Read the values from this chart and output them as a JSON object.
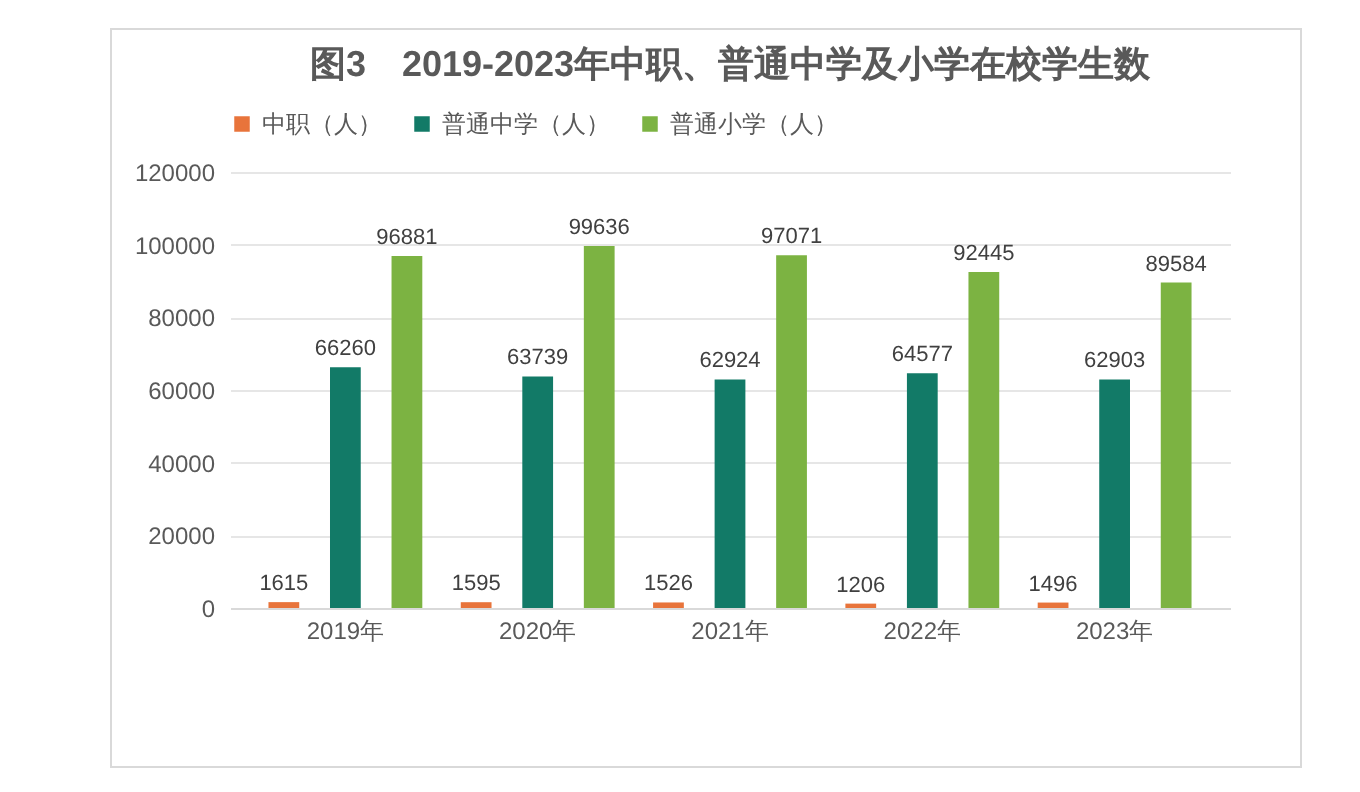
{
  "chart_data": {
    "type": "bar",
    "title": "图3　2019-2023年中职、普通中学及小学在校学生数",
    "categories": [
      "2019年",
      "2020年",
      "2021年",
      "2022年",
      "2023年"
    ],
    "series": [
      {
        "name": "中职（人）",
        "color": "#e8743b",
        "values": [
          1615,
          1595,
          1526,
          1206,
          1496
        ]
      },
      {
        "name": "普通中学（人）",
        "color": "#127a67",
        "values": [
          66260,
          63739,
          62924,
          64577,
          62903
        ]
      },
      {
        "name": "普通小学（人）",
        "color": "#7cb342",
        "values": [
          96881,
          99636,
          97071,
          92445,
          89584
        ]
      }
    ],
    "ylim": [
      0,
      120000
    ],
    "yticks": [
      0,
      20000,
      40000,
      60000,
      80000,
      100000,
      120000
    ],
    "grid": "y",
    "legend": "top",
    "data_labels": true
  }
}
